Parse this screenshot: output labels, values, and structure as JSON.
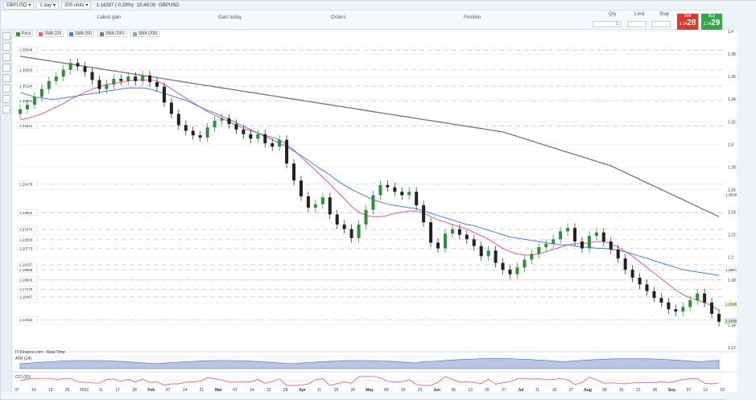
{
  "toolbar": {
    "symbol": "GBPUSD",
    "timeframe": "1 day",
    "units": "200 units",
    "price_change": "1.14287 (-0.29%)",
    "time": "15:49:00",
    "symbol2": "GBPUSD"
  },
  "info": {
    "latest_gain": "Latest gain",
    "gain_today": "Gain today",
    "orders": "Orders",
    "position": "Position",
    "qty_label": "Qty",
    "limit_label": "Limit",
    "stop_label": "Stop",
    "sell_label": "Sell",
    "buy_label": "Buy",
    "sell_price_small": "1.14",
    "sell_price_big": "28",
    "buy_price_small": "1.14",
    "buy_price_big": "29"
  },
  "legend": {
    "price": "Price",
    "sma20": "SMA (20)",
    "sma50": "SMA (50)",
    "sma200": "SMA (200)",
    "sma200b": "SMA (200)"
  },
  "colors": {
    "price_up": "#2f8f3a",
    "price_down": "#222222",
    "sma20": "#e85a8c",
    "sma50": "#4f7fd6",
    "sma200": "#7b7470",
    "grid": "#b9c6d6",
    "panel_bg": "#ffffff"
  },
  "footer": {
    "brand": "IT-Finance.com - Real-Time",
    "atr_label": "ATR (14)",
    "cci_label": "CCI (20)"
  },
  "chart_data": {
    "type": "candlestick",
    "title": "",
    "ylim": [
      1.12,
      1.4
    ],
    "yticks": [
      "1.4",
      "1.38",
      "1.36",
      "1.34",
      "1.32",
      "1.3",
      "1.28",
      "1.26",
      "1.24",
      "1.22",
      "1.2",
      "1.18",
      "1.16",
      "1.14",
      "1.12"
    ],
    "xticks": [
      "07",
      "10",
      "19",
      "26",
      "2022",
      "11",
      "17",
      "28",
      "Feb",
      "07",
      "14",
      "21",
      "Mar",
      "07",
      "14",
      "22",
      "28",
      "Apr",
      "11",
      "19",
      "26",
      "May",
      "09",
      "16",
      "23",
      "Jun",
      "06",
      "13",
      "20",
      "27",
      "Jul",
      "11",
      "18",
      "27",
      "Aug",
      "08",
      "15",
      "22",
      "30",
      "Sep",
      "07",
      "13",
      "19"
    ],
    "hlevels": [
      {
        "label": "1.38346",
        "value": 1.38346
      },
      {
        "label": "1.36593",
        "value": 1.36593
      },
      {
        "label": "1.35154",
        "value": 1.35154
      },
      {
        "label": "1.33834",
        "value": 1.33834
      },
      {
        "label": "1.31621",
        "value": 1.31621
      },
      {
        "label": "1.26478",
        "value": 1.26478
      },
      {
        "label": "1.23922",
        "value": 1.23922
      },
      {
        "label": "1.22474",
        "value": 1.22474
      },
      {
        "label": "1.21559",
        "value": 1.21559
      },
      {
        "label": "1.20773",
        "value": 1.20773
      },
      {
        "label": "1.19337",
        "value": 1.19337
      },
      {
        "label": "1.18888",
        "value": 1.18888
      },
      {
        "label": "1.18000",
        "value": 1.18
      },
      {
        "label": "1.17176",
        "value": 1.17176
      },
      {
        "label": "1.16497",
        "value": 1.16497
      },
      {
        "label": "1.14453",
        "value": 1.14453
      }
    ],
    "right_labels": [
      "1.25546",
      "1.18873",
      "1.15850",
      "1.14287",
      "1.14336"
    ],
    "series": [
      {
        "name": "Price",
        "values": [
          1.331,
          1.335,
          1.342,
          1.349,
          1.356,
          1.36,
          1.366,
          1.372,
          1.369,
          1.364,
          1.357,
          1.349,
          1.353,
          1.358,
          1.356,
          1.36,
          1.356,
          1.361,
          1.355,
          1.351,
          1.337,
          1.327,
          1.317,
          1.312,
          1.308,
          1.306,
          1.315,
          1.321,
          1.323,
          1.318,
          1.313,
          1.309,
          1.305,
          1.309,
          1.301,
          1.298,
          1.304,
          1.283,
          1.268,
          1.254,
          1.244,
          1.247,
          1.253,
          1.238,
          1.229,
          1.225,
          1.217,
          1.229,
          1.242,
          1.255,
          1.264,
          1.262,
          1.258,
          1.255,
          1.258,
          1.246,
          1.231,
          1.213,
          1.208,
          1.221,
          1.225,
          1.22,
          1.216,
          1.21,
          1.201,
          1.206,
          1.195,
          1.189,
          1.185,
          1.191,
          1.198,
          1.203,
          1.209,
          1.212,
          1.216,
          1.223,
          1.226,
          1.214,
          1.208,
          1.219,
          1.222,
          1.214,
          1.207,
          1.199,
          1.189,
          1.182,
          1.176,
          1.17,
          1.164,
          1.16,
          1.154,
          1.152,
          1.156,
          1.162,
          1.168,
          1.16,
          1.15,
          1.143
        ]
      },
      {
        "name": "SMA (20)",
        "values": [
          1.322,
          1.323,
          1.325,
          1.327,
          1.33,
          1.333,
          1.336,
          1.34,
          1.343,
          1.346,
          1.349,
          1.351,
          1.353,
          1.354,
          1.355,
          1.356,
          1.357,
          1.357,
          1.357,
          1.356,
          1.353,
          1.349,
          1.345,
          1.341,
          1.337,
          1.333,
          1.329,
          1.326,
          1.323,
          1.32,
          1.317,
          1.314,
          1.312,
          1.31,
          1.308,
          1.306,
          1.304,
          1.3,
          1.295,
          1.289,
          1.283,
          1.277,
          1.271,
          1.265,
          1.258,
          1.252,
          1.245,
          1.24,
          1.237,
          1.236,
          1.236,
          1.237,
          1.239,
          1.24,
          1.241,
          1.241,
          1.239,
          1.236,
          1.233,
          1.231,
          1.229,
          1.227,
          1.225,
          1.222,
          1.219,
          1.216,
          1.212,
          1.208,
          1.205,
          1.203,
          1.202,
          1.202,
          1.203,
          1.205,
          1.207,
          1.209,
          1.211,
          1.212,
          1.212,
          1.213,
          1.214,
          1.214,
          1.212,
          1.209,
          1.205,
          1.201,
          1.196,
          1.191,
          1.186,
          1.181,
          1.176,
          1.171,
          1.167,
          1.164,
          1.162,
          1.16,
          1.157,
          1.153
        ]
      },
      {
        "name": "SMA (50)",
        "values": [
          1.346,
          1.344,
          1.342,
          1.341,
          1.34,
          1.34,
          1.341,
          1.342,
          1.343,
          1.344,
          1.345,
          1.346,
          1.347,
          1.348,
          1.349,
          1.35,
          1.35,
          1.35,
          1.349,
          1.347,
          1.345,
          1.343,
          1.341,
          1.339,
          1.336,
          1.333,
          1.33,
          1.328,
          1.325,
          1.322,
          1.319,
          1.316,
          1.313,
          1.31,
          1.307,
          1.304,
          1.301,
          1.298,
          1.294,
          1.29,
          1.286,
          1.281,
          1.277,
          1.273,
          1.268,
          1.264,
          1.26,
          1.257,
          1.254,
          1.251,
          1.249,
          1.247,
          1.246,
          1.245,
          1.244,
          1.243,
          1.241,
          1.239,
          1.237,
          1.235,
          1.233,
          1.231,
          1.229,
          1.228,
          1.226,
          1.224,
          1.222,
          1.22,
          1.218,
          1.217,
          1.216,
          1.215,
          1.214,
          1.213,
          1.212,
          1.211,
          1.211,
          1.21,
          1.209,
          1.209,
          1.208,
          1.208,
          1.207,
          1.206,
          1.205,
          1.203,
          1.201,
          1.199,
          1.197,
          1.195,
          1.193,
          1.191,
          1.189,
          1.188,
          1.187,
          1.186,
          1.185,
          1.184
        ]
      },
      {
        "name": "SMA (200)",
        "values": [
          1.378,
          1.377,
          1.376,
          1.375,
          1.374,
          1.373,
          1.372,
          1.371,
          1.37,
          1.369,
          1.368,
          1.367,
          1.366,
          1.365,
          1.364,
          1.363,
          1.362,
          1.361,
          1.36,
          1.359,
          1.358,
          1.357,
          1.356,
          1.355,
          1.354,
          1.353,
          1.352,
          1.351,
          1.35,
          1.349,
          1.348,
          1.347,
          1.346,
          1.345,
          1.344,
          1.343,
          1.342,
          1.341,
          1.34,
          1.339,
          1.338,
          1.337,
          1.336,
          1.335,
          1.334,
          1.333,
          1.332,
          1.331,
          1.33,
          1.329,
          1.328,
          1.327,
          1.326,
          1.325,
          1.324,
          1.323,
          1.322,
          1.321,
          1.32,
          1.319,
          1.318,
          1.317,
          1.316,
          1.315,
          1.314,
          1.313,
          1.312,
          1.311,
          1.309,
          1.307,
          1.305,
          1.303,
          1.301,
          1.299,
          1.297,
          1.295,
          1.293,
          1.291,
          1.289,
          1.287,
          1.285,
          1.283,
          1.281,
          1.278,
          1.275,
          1.272,
          1.269,
          1.266,
          1.263,
          1.26,
          1.257,
          1.254,
          1.251,
          1.248,
          1.245,
          1.242,
          1.239,
          1.236
        ]
      }
    ]
  }
}
